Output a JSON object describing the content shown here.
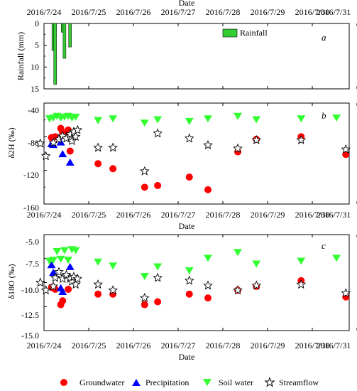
{
  "figure": {
    "date_ticks": [
      "2016/7/24",
      "2016/7/25",
      "2016/7/26",
      "2016/7/27",
      "2016/7/28",
      "2016/7/29",
      "2016/7/30",
      "2016/7/31"
    ],
    "xlabel": "Date"
  },
  "chart_data": [
    {
      "type": "bar",
      "panel": "a",
      "ylabel": "Rainfall (mm)",
      "ylim": [
        0,
        15
      ],
      "yticks": [
        0,
        5,
        10,
        15
      ],
      "y_inverted": true,
      "xlabel": "Date",
      "legend": {
        "label": "Rainfall",
        "position": "top-right"
      },
      "series": [
        {
          "name": "Rainfall",
          "color": "#33cc33",
          "points": [
            {
              "x": "2016/7/24 05:00",
              "y": 6.2
            },
            {
              "x": "2016/7/24 06:00",
              "y": 14.0
            },
            {
              "x": "2016/7/24 10:00",
              "y": 2.0
            },
            {
              "x": "2016/7/24 11:00",
              "y": 8.0
            },
            {
              "x": "2016/7/24 14:00",
              "y": 5.4
            }
          ]
        }
      ]
    },
    {
      "type": "scatter",
      "panel": "b",
      "ylabel": "δ2H (‰)",
      "ylim": [
        -160,
        -40
      ],
      "yticks": [
        -40,
        -80,
        -120,
        -160
      ],
      "y_minor_ticks": [
        -60,
        -100,
        -140
      ],
      "xlabel": "Date",
      "series": [
        {
          "name": "Groundwater",
          "points": [
            {
              "x": "2016/7/24 04:00",
              "y": -81
            },
            {
              "x": "2016/7/24 06:00",
              "y": -80
            },
            {
              "x": "2016/7/24 09:00",
              "y": -70
            },
            {
              "x": "2016/7/24 10:00",
              "y": -75
            },
            {
              "x": "2016/7/24 11:00",
              "y": -76
            },
            {
              "x": "2016/7/24 13:00",
              "y": -72
            },
            {
              "x": "2016/7/24 14:00",
              "y": -97
            },
            {
              "x": "2016/7/25 05:00",
              "y": -112
            },
            {
              "x": "2016/7/25 13:00",
              "y": -118
            },
            {
              "x": "2016/7/26 06:00",
              "y": -140
            },
            {
              "x": "2016/7/26 13:00",
              "y": -138
            },
            {
              "x": "2016/7/27 06:00",
              "y": -128
            },
            {
              "x": "2016/7/27 16:00",
              "y": -143
            },
            {
              "x": "2016/7/28 08:00",
              "y": -98
            },
            {
              "x": "2016/7/28 18:00",
              "y": -83
            },
            {
              "x": "2016/7/29 18:00",
              "y": -80
            },
            {
              "x": "2016/7/30 18:00",
              "y": -101
            }
          ]
        },
        {
          "name": "Precipitation",
          "points": [
            {
              "x": "2016/7/24 04:00",
              "y": -89
            },
            {
              "x": "2016/7/24 05:00",
              "y": -90
            },
            {
              "x": "2016/7/24 09:00",
              "y": -87
            },
            {
              "x": "2016/7/24 10:00",
              "y": -101
            },
            {
              "x": "2016/7/24 14:00",
              "y": -111
            }
          ]
        },
        {
          "name": "Soil water",
          "points": [
            {
              "x": "2016/7/24 03:00",
              "y": -58
            },
            {
              "x": "2016/7/24 05:00",
              "y": -57
            },
            {
              "x": "2016/7/24 07:00",
              "y": -55
            },
            {
              "x": "2016/7/24 09:00",
              "y": -57
            },
            {
              "x": "2016/7/24 11:00",
              "y": -56
            },
            {
              "x": "2016/7/24 13:00",
              "y": -55
            },
            {
              "x": "2016/7/24 15:00",
              "y": -57
            },
            {
              "x": "2016/7/24 17:00",
              "y": -56
            },
            {
              "x": "2016/7/25 05:00",
              "y": -60
            },
            {
              "x": "2016/7/25 13:00",
              "y": -58
            },
            {
              "x": "2016/7/26 06:00",
              "y": -63
            },
            {
              "x": "2016/7/26 13:00",
              "y": -59
            },
            {
              "x": "2016/7/27 06:00",
              "y": -61
            },
            {
              "x": "2016/7/27 16:00",
              "y": -58
            },
            {
              "x": "2016/7/28 08:00",
              "y": -55
            },
            {
              "x": "2016/7/28 18:00",
              "y": -59
            },
            {
              "x": "2016/7/29 18:00",
              "y": -58
            },
            {
              "x": "2016/7/30 13:00",
              "y": -57
            }
          ]
        },
        {
          "name": "Streamflow",
          "points": [
            {
              "x": "2016/7/23 22:00",
              "y": -88
            },
            {
              "x": "2016/7/24 01:00",
              "y": -103
            },
            {
              "x": "2016/7/24 05:00",
              "y": -87
            },
            {
              "x": "2016/7/24 08:00",
              "y": -83
            },
            {
              "x": "2016/7/24 10:00",
              "y": -79
            },
            {
              "x": "2016/7/24 12:00",
              "y": -82
            },
            {
              "x": "2016/7/24 14:00",
              "y": -77
            },
            {
              "x": "2016/7/24 15:00",
              "y": -85
            },
            {
              "x": "2016/7/24 16:00",
              "y": -74
            },
            {
              "x": "2016/7/24 17:00",
              "y": -80
            },
            {
              "x": "2016/7/24 18:00",
              "y": -72
            },
            {
              "x": "2016/7/25 05:00",
              "y": -93
            },
            {
              "x": "2016/7/25 13:00",
              "y": -93
            },
            {
              "x": "2016/7/26 06:00",
              "y": -121
            },
            {
              "x": "2016/7/26 13:00",
              "y": -76
            },
            {
              "x": "2016/7/27 06:00",
              "y": -82
            },
            {
              "x": "2016/7/27 16:00",
              "y": -90
            },
            {
              "x": "2016/7/28 08:00",
              "y": -94
            },
            {
              "x": "2016/7/28 18:00",
              "y": -84
            },
            {
              "x": "2016/7/29 18:00",
              "y": -84
            },
            {
              "x": "2016/7/30 18:00",
              "y": -95
            }
          ]
        }
      ]
    },
    {
      "type": "scatter",
      "panel": "c",
      "ylabel": "δ18O (‰)",
      "ylim": [
        -15.0,
        -5.0
      ],
      "yticks": [
        "-5.0",
        "-7.5",
        "-10.0",
        "-12.5",
        "-15.0"
      ],
      "xlabel": "Date",
      "series": [
        {
          "name": "Groundwater",
          "points": [
            {
              "x": "2016/7/24 04:00",
              "y": -10.5
            },
            {
              "x": "2016/7/24 06:00",
              "y": -10.7
            },
            {
              "x": "2016/7/24 09:00",
              "y": -12.3
            },
            {
              "x": "2016/7/24 10:00",
              "y": -11.9
            },
            {
              "x": "2016/7/24 13:00",
              "y": -10.7
            },
            {
              "x": "2016/7/25 05:00",
              "y": -11.2
            },
            {
              "x": "2016/7/25 13:00",
              "y": -11.2
            },
            {
              "x": "2016/7/26 06:00",
              "y": -12.3
            },
            {
              "x": "2016/7/26 13:00",
              "y": -12.0
            },
            {
              "x": "2016/7/27 06:00",
              "y": -11.2
            },
            {
              "x": "2016/7/27 16:00",
              "y": -11.6
            },
            {
              "x": "2016/7/28 08:00",
              "y": -10.8
            },
            {
              "x": "2016/7/28 18:00",
              "y": -10.4
            },
            {
              "x": "2016/7/29 18:00",
              "y": -9.8
            },
            {
              "x": "2016/7/30 18:00",
              "y": -11.5
            }
          ]
        },
        {
          "name": "Precipitation",
          "points": [
            {
              "x": "2016/7/24 04:00",
              "y": -8.2
            },
            {
              "x": "2016/7/24 05:00",
              "y": -9.0
            },
            {
              "x": "2016/7/24 09:00",
              "y": -10.6
            },
            {
              "x": "2016/7/24 10:00",
              "y": -11.0
            },
            {
              "x": "2016/7/24 14:00",
              "y": -8.4
            }
          ]
        },
        {
          "name": "Soil water",
          "points": [
            {
              "x": "2016/7/24 03:00",
              "y": -7.7
            },
            {
              "x": "2016/7/24 05:00",
              "y": -7.6
            },
            {
              "x": "2016/7/24 07:00",
              "y": -6.7
            },
            {
              "x": "2016/7/24 09:00",
              "y": -7.5
            },
            {
              "x": "2016/7/24 11:00",
              "y": -6.6
            },
            {
              "x": "2016/7/24 13:00",
              "y": -7.6
            },
            {
              "x": "2016/7/24 15:00",
              "y": -6.5
            },
            {
              "x": "2016/7/24 17:00",
              "y": -6.6
            },
            {
              "x": "2016/7/25 05:00",
              "y": -7.8
            },
            {
              "x": "2016/7/25 13:00",
              "y": -8.2
            },
            {
              "x": "2016/7/26 06:00",
              "y": -9.3
            },
            {
              "x": "2016/7/26 13:00",
              "y": -8.3
            },
            {
              "x": "2016/7/27 06:00",
              "y": -8.7
            },
            {
              "x": "2016/7/27 16:00",
              "y": -7.4
            },
            {
              "x": "2016/7/28 08:00",
              "y": -6.8
            },
            {
              "x": "2016/7/28 18:00",
              "y": -8.0
            },
            {
              "x": "2016/7/29 18:00",
              "y": -7.7
            },
            {
              "x": "2016/7/30 13:00",
              "y": -7.4
            }
          ]
        },
        {
          "name": "Streamflow",
          "points": [
            {
              "x": "2016/7/23 22:00",
              "y": -10.0
            },
            {
              "x": "2016/7/24 01:00",
              "y": -10.8
            },
            {
              "x": "2016/7/24 05:00",
              "y": -10.4
            },
            {
              "x": "2016/7/24 06:00",
              "y": -9.5
            },
            {
              "x": "2016/7/24 08:00",
              "y": -8.9
            },
            {
              "x": "2016/7/24 10:00",
              "y": -9.6
            },
            {
              "x": "2016/7/24 12:00",
              "y": -9.2
            },
            {
              "x": "2016/7/24 14:00",
              "y": -9.6
            },
            {
              "x": "2016/7/24 15:00",
              "y": -9.9
            },
            {
              "x": "2016/7/24 16:00",
              "y": -9.4
            },
            {
              "x": "2016/7/24 17:00",
              "y": -10.2
            },
            {
              "x": "2016/7/24 18:00",
              "y": -9.6
            },
            {
              "x": "2016/7/25 05:00",
              "y": -10.2
            },
            {
              "x": "2016/7/25 13:00",
              "y": -10.8
            },
            {
              "x": "2016/7/26 06:00",
              "y": -11.6
            },
            {
              "x": "2016/7/26 13:00",
              "y": -9.5
            },
            {
              "x": "2016/7/27 06:00",
              "y": -9.8
            },
            {
              "x": "2016/7/27 16:00",
              "y": -10.3
            },
            {
              "x": "2016/7/28 08:00",
              "y": -10.8
            },
            {
              "x": "2016/7/28 18:00",
              "y": -10.3
            },
            {
              "x": "2016/7/29 18:00",
              "y": -10.2
            },
            {
              "x": "2016/7/30 18:00",
              "y": -11.1
            }
          ]
        }
      ]
    }
  ],
  "legend": {
    "position": "bottom",
    "items": [
      {
        "label": "Groundwater",
        "marker": "circle",
        "color": "#ff0000"
      },
      {
        "label": "Precipitation",
        "marker": "triangle-up",
        "color": "#0000ff"
      },
      {
        "label": "Soil water",
        "marker": "triangle-down",
        "color": "#33ff33"
      },
      {
        "label": "Streamflow",
        "marker": "star",
        "color": "#000000"
      }
    ]
  },
  "colors": {
    "Groundwater": "#ff0000",
    "Precipitation": "#0000ff",
    "Soil water": "#33ff33",
    "Streamflow": "#000000",
    "Rainfall": "#33cc33"
  }
}
